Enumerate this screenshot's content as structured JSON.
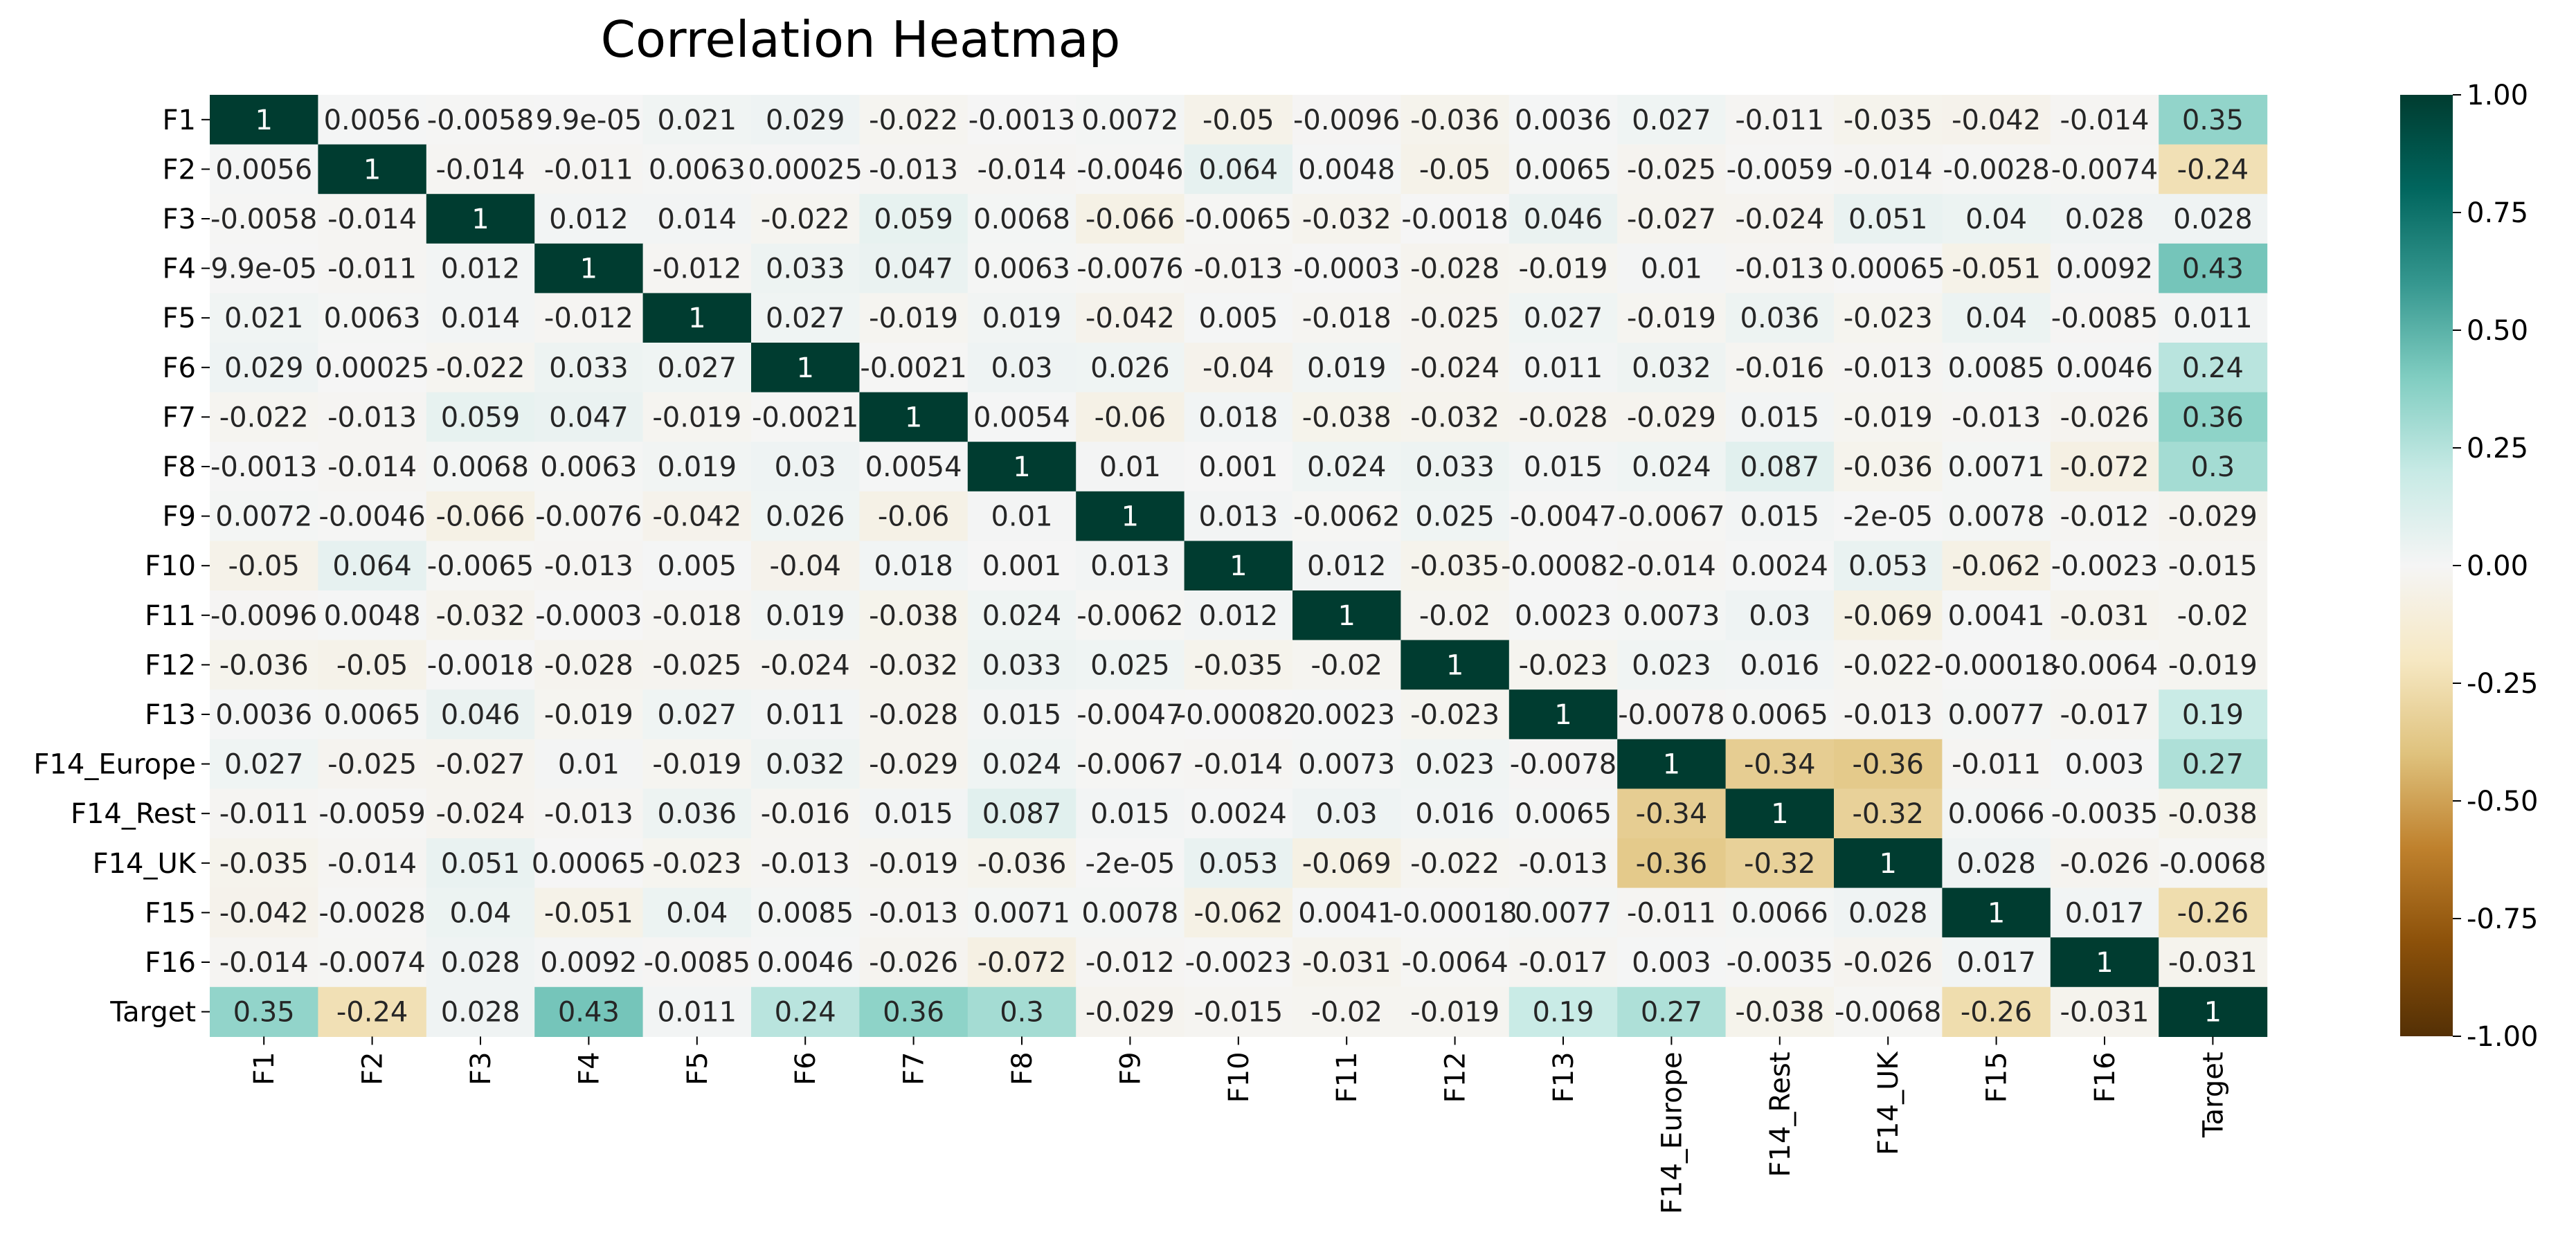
{
  "chart_data": {
    "type": "heatmap",
    "title": "Correlation Heatmap",
    "xlabel": "",
    "ylabel": "",
    "rows": [
      "F1",
      "F2",
      "F3",
      "F4",
      "F5",
      "F6",
      "F7",
      "F8",
      "F9",
      "F10",
      "F11",
      "F12",
      "F13",
      "F14_Europe",
      "F14_Rest",
      "F14_UK",
      "F15",
      "F16",
      "Target"
    ],
    "columns": [
      "F1",
      "F2",
      "F3",
      "F4",
      "F5",
      "F6",
      "F7",
      "F8",
      "F9",
      "F10",
      "F11",
      "F12",
      "F13",
      "F14_Europe",
      "F14_Rest",
      "F14_UK",
      "F15",
      "F16",
      "Target"
    ],
    "values": [
      [
        "1",
        "0.0056",
        "-0.0058",
        "9.9e-05",
        "0.021",
        "0.029",
        "-0.022",
        "-0.0013",
        "0.0072",
        "-0.05",
        "-0.0096",
        "-0.036",
        "0.0036",
        "0.027",
        "-0.011",
        "-0.035",
        "-0.042",
        "-0.014",
        "0.35"
      ],
      [
        "0.0056",
        "1",
        "-0.014",
        "-0.011",
        "0.0063",
        "0.00025",
        "-0.013",
        "-0.014",
        "-0.0046",
        "0.064",
        "0.0048",
        "-0.05",
        "0.0065",
        "-0.025",
        "-0.0059",
        "-0.014",
        "-0.0028",
        "-0.0074",
        "-0.24"
      ],
      [
        "-0.0058",
        "-0.014",
        "1",
        "0.012",
        "0.014",
        "-0.022",
        "0.059",
        "0.0068",
        "-0.066",
        "-0.0065",
        "-0.032",
        "-0.0018",
        "0.046",
        "-0.027",
        "-0.024",
        "0.051",
        "0.04",
        "0.028",
        "0.028"
      ],
      [
        "9.9e-05",
        "-0.011",
        "0.012",
        "1",
        "-0.012",
        "0.033",
        "0.047",
        "0.0063",
        "-0.0076",
        "-0.013",
        "-0.0003",
        "-0.028",
        "-0.019",
        "0.01",
        "-0.013",
        "0.00065",
        "-0.051",
        "0.0092",
        "0.43"
      ],
      [
        "0.021",
        "0.0063",
        "0.014",
        "-0.012",
        "1",
        "0.027",
        "-0.019",
        "0.019",
        "-0.042",
        "0.005",
        "-0.018",
        "-0.025",
        "0.027",
        "-0.019",
        "0.036",
        "-0.023",
        "0.04",
        "-0.0085",
        "0.011"
      ],
      [
        "0.029",
        "0.00025",
        "-0.022",
        "0.033",
        "0.027",
        "1",
        "-0.0021",
        "0.03",
        "0.026",
        "-0.04",
        "0.019",
        "-0.024",
        "0.011",
        "0.032",
        "-0.016",
        "-0.013",
        "0.0085",
        "0.0046",
        "0.24"
      ],
      [
        "-0.022",
        "-0.013",
        "0.059",
        "0.047",
        "-0.019",
        "-0.0021",
        "1",
        "0.0054",
        "-0.06",
        "0.018",
        "-0.038",
        "-0.032",
        "-0.028",
        "-0.029",
        "0.015",
        "-0.019",
        "-0.013",
        "-0.026",
        "0.36"
      ],
      [
        "-0.0013",
        "-0.014",
        "0.0068",
        "0.0063",
        "0.019",
        "0.03",
        "0.0054",
        "1",
        "0.01",
        "0.001",
        "0.024",
        "0.033",
        "0.015",
        "0.024",
        "0.087",
        "-0.036",
        "0.0071",
        "-0.072",
        "0.3"
      ],
      [
        "0.0072",
        "-0.0046",
        "-0.066",
        "-0.0076",
        "-0.042",
        "0.026",
        "-0.06",
        "0.01",
        "1",
        "0.013",
        "-0.0062",
        "0.025",
        "-0.0047",
        "-0.0067",
        "0.015",
        "-2e-05",
        "0.0078",
        "-0.012",
        "-0.029"
      ],
      [
        "-0.05",
        "0.064",
        "-0.0065",
        "-0.013",
        "0.005",
        "-0.04",
        "0.018",
        "0.001",
        "0.013",
        "1",
        "0.012",
        "-0.035",
        "-0.00082",
        "-0.014",
        "0.0024",
        "0.053",
        "-0.062",
        "-0.0023",
        "-0.015"
      ],
      [
        "-0.0096",
        "0.0048",
        "-0.032",
        "-0.0003",
        "-0.018",
        "0.019",
        "-0.038",
        "0.024",
        "-0.0062",
        "0.012",
        "1",
        "-0.02",
        "0.0023",
        "0.0073",
        "0.03",
        "-0.069",
        "0.0041",
        "-0.031",
        "-0.02"
      ],
      [
        "-0.036",
        "-0.05",
        "-0.0018",
        "-0.028",
        "-0.025",
        "-0.024",
        "-0.032",
        "0.033",
        "0.025",
        "-0.035",
        "-0.02",
        "1",
        "-0.023",
        "0.023",
        "0.016",
        "-0.022",
        "-0.00018",
        "-0.0064",
        "-0.019"
      ],
      [
        "0.0036",
        "0.0065",
        "0.046",
        "-0.019",
        "0.027",
        "0.011",
        "-0.028",
        "0.015",
        "-0.0047",
        "-0.00082",
        "0.0023",
        "-0.023",
        "1",
        "-0.0078",
        "0.0065",
        "-0.013",
        "0.0077",
        "-0.017",
        "0.19"
      ],
      [
        "0.027",
        "-0.025",
        "-0.027",
        "0.01",
        "-0.019",
        "0.032",
        "-0.029",
        "0.024",
        "-0.0067",
        "-0.014",
        "0.0073",
        "0.023",
        "-0.0078",
        "1",
        "-0.34",
        "-0.36",
        "-0.011",
        "0.003",
        "0.27"
      ],
      [
        "-0.011",
        "-0.0059",
        "-0.024",
        "-0.013",
        "0.036",
        "-0.016",
        "0.015",
        "0.087",
        "0.015",
        "0.0024",
        "0.03",
        "0.016",
        "0.0065",
        "-0.34",
        "1",
        "-0.32",
        "0.0066",
        "-0.0035",
        "-0.038"
      ],
      [
        "-0.035",
        "-0.014",
        "0.051",
        "0.00065",
        "-0.023",
        "-0.013",
        "-0.019",
        "-0.036",
        "-2e-05",
        "0.053",
        "-0.069",
        "-0.022",
        "-0.013",
        "-0.36",
        "-0.32",
        "1",
        "0.028",
        "-0.026",
        "-0.0068"
      ],
      [
        "-0.042",
        "-0.0028",
        "0.04",
        "-0.051",
        "0.04",
        "0.0085",
        "-0.013",
        "0.0071",
        "0.0078",
        "-0.062",
        "0.0041",
        "-0.00018",
        "0.0077",
        "-0.011",
        "0.0066",
        "0.028",
        "1",
        "0.017",
        "-0.26"
      ],
      [
        "-0.014",
        "-0.0074",
        "0.028",
        "0.0092",
        "-0.0085",
        "0.0046",
        "-0.026",
        "-0.072",
        "-0.012",
        "-0.0023",
        "-0.031",
        "-0.0064",
        "-0.017",
        "0.003",
        "-0.0035",
        "-0.026",
        "0.017",
        "1",
        "-0.031"
      ],
      [
        "0.35",
        "-0.24",
        "0.028",
        "0.43",
        "0.011",
        "0.24",
        "0.36",
        "0.3",
        "-0.029",
        "-0.015",
        "-0.02",
        "-0.019",
        "0.19",
        "0.27",
        "-0.038",
        "-0.0068",
        "-0.26",
        "-0.031",
        "1"
      ]
    ],
    "colorbar": {
      "range": [
        -1.0,
        1.0
      ],
      "ticks": [
        "1.00",
        "0.75",
        "0.50",
        "0.25",
        "0.00",
        "-0.25",
        "-0.50",
        "-0.75",
        "-1.00"
      ],
      "tick_values": [
        1.0,
        0.75,
        0.5,
        0.25,
        0.0,
        -0.25,
        -0.5,
        -0.75,
        -1.0
      ]
    },
    "colormap": "BrBG",
    "colors": {
      "stops": [
        "#543005",
        "#8c510a",
        "#bf812d",
        "#dfc27d",
        "#f6e8c3",
        "#f5f5f5",
        "#c7eae5",
        "#80cdc1",
        "#35978f",
        "#01665e",
        "#003c30"
      ]
    }
  }
}
